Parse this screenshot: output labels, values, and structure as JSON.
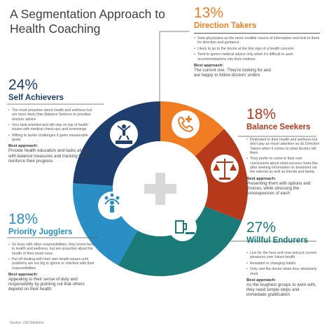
{
  "title": "A Segmentation Approach to Health Coaching",
  "source": "Source: c2b Solutions",
  "colors": {
    "direction_takers": "#f07d22",
    "balance_seekers": "#b5391b",
    "willful_endurers": "#1a7a78",
    "priority_jugglers": "#2a8fc4",
    "self_achievers": "#1e3f6e",
    "center": "#ffffff",
    "plus": "#d8d8d8"
  },
  "segments": {
    "direction_takers": {
      "pct": "13%",
      "name": "Direction Takers",
      "icon": "phone-medical-icon",
      "bullets": [
        "View physicians as the most credible source of information and look to them for direction and guidance",
        "Likely to go to the doctor at the first sign of a health concern",
        "Tend to ignore medical advice only when it's difficult to work recommendations into their routines."
      ],
      "approach_heading": "Best approach:",
      "approach": "The current one. They're looking for and are happy to follow doctors' orders"
    },
    "balance_seekers": {
      "pct": "18%",
      "name": "Balance Seekers",
      "icon": "scales-icon",
      "bullets": [
        "Dedicated to their health and wellness but don't pay as much attention as do Direction Takers when it comes to what doctors tell them",
        "They prefer to come to their own conclusions about what success looks like after seeking information on treatment via the internet as well as friends and family"
      ],
      "approach_heading": "Best approach:",
      "approach": "Presenting them with options and choices, while stressing the consequences of each"
    },
    "willful_endurers": {
      "pct": "27%",
      "name": "Willful Endurers",
      "icon": "beer-cigarette-icon",
      "bullets": [
        "Live for the here and now and put current pleasures over future health",
        "Resistant to changing habits",
        "Only visit the doctor when they absolutely must"
      ],
      "approach_heading": "Best approach:",
      "approach": "As the toughest groups to work with, they need simple steps and immediate gratification"
    },
    "priority_jugglers": {
      "pct": "18%",
      "name": "Priority Jugglers",
      "icon": "juggler-icon",
      "bullets": [
        "So busy with other responsibilities, they invest less in health and wellness, but are proactive about the health of their loved ones",
        "Put off dealing with their own health issues until problems are too big to ignore or interfere with their responsibilities"
      ],
      "approach_heading": "Best approach:",
      "approach": "Appealing to their sense of duty and responsibility by pointing out that others depend on their health"
    },
    "self_achievers": {
      "pct": "24%",
      "name": "Self Achievers",
      "icon": "podium-winner-icon",
      "bullets": [
        "The most proactive about health and wellness but are more likely than Balance Seekers to prioritize doctors' advice",
        "Very task-oriented and will stay on top of health issues with medical check-ups and screenings",
        "Willing to tackle challenges if given measurable goals"
      ],
      "approach_heading": "Best approach:",
      "approach": "Provide health education and tasks along with balance measures and tracking tools to reinforce their progress"
    }
  },
  "donut_order": [
    "direction_takers",
    "balance_seekers",
    "willful_endurers",
    "priority_jugglers",
    "self_achievers"
  ],
  "donut_values": [
    13,
    18,
    27,
    18,
    24
  ]
}
